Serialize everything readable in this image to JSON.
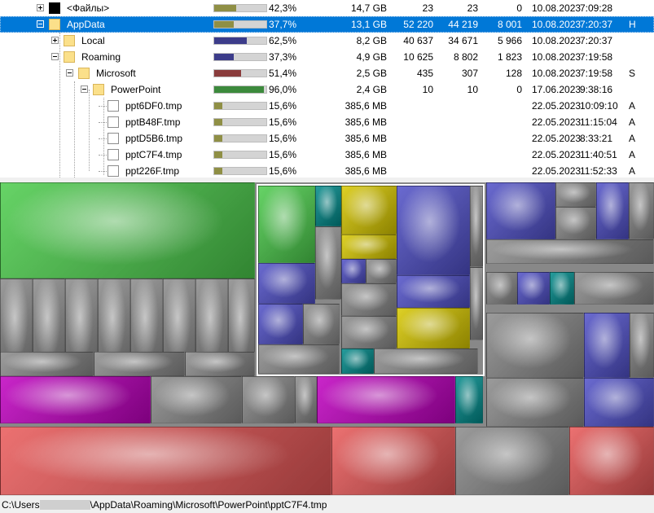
{
  "tree": {
    "rows": [
      {
        "name": "<Файлы>",
        "percent": "42,3%",
        "size": "14,7 GB",
        "items": "23",
        "files": "23",
        "subdirs": "0",
        "date": "10.08.2023",
        "time": "7:09:28",
        "attr": "",
        "bar_value": 0.423,
        "bar_color": "#8f8f45",
        "icon": "black-square-icon",
        "expander": "plus",
        "selected": false
      },
      {
        "name": "AppData",
        "percent": "37,7%",
        "size": "13,1 GB",
        "items": "52 220",
        "files": "44 219",
        "subdirs": "8 001",
        "date": "10.08.2023",
        "time": "7:20:37",
        "attr": "H",
        "bar_value": 0.377,
        "bar_color": "#8f8f45",
        "icon": "folder-icon",
        "expander": "minus",
        "selected": true
      },
      {
        "name": "Local",
        "percent": "62,5%",
        "size": "8,2 GB",
        "items": "40 637",
        "files": "34 671",
        "subdirs": "5 966",
        "date": "10.08.2023",
        "time": "7:20:37",
        "attr": "",
        "bar_value": 0.625,
        "bar_color": "#3c3c8a",
        "icon": "folder-icon",
        "expander": "plus",
        "selected": false
      },
      {
        "name": "Roaming",
        "percent": "37,3%",
        "size": "4,9 GB",
        "items": "10 625",
        "files": "8 802",
        "subdirs": "1 823",
        "date": "10.08.2023",
        "time": "7:19:58",
        "attr": "",
        "bar_value": 0.373,
        "bar_color": "#3c3c8a",
        "icon": "folder-icon",
        "expander": "minus",
        "selected": false
      },
      {
        "name": "Microsoft",
        "percent": "51,4%",
        "size": "2,5 GB",
        "items": "435",
        "files": "307",
        "subdirs": "128",
        "date": "10.08.2023",
        "time": "7:19:58",
        "attr": "S",
        "bar_value": 0.514,
        "bar_color": "#8a3c3c",
        "icon": "folder-icon",
        "expander": "minus",
        "selected": false
      },
      {
        "name": "PowerPoint",
        "percent": "96,0%",
        "size": "2,4 GB",
        "items": "10",
        "files": "10",
        "subdirs": "0",
        "date": "17.06.2023",
        "time": "9:38:16",
        "attr": "",
        "bar_value": 0.96,
        "bar_color": "#3c8a3c",
        "icon": "folder-icon",
        "expander": "minus",
        "selected": false
      },
      {
        "name": "ppt6DF0.tmp",
        "percent": "15,6%",
        "size": "385,6 MB",
        "items": "",
        "files": "",
        "subdirs": "",
        "date": "22.05.2023",
        "time": "10:09:10",
        "attr": "A",
        "bar_value": 0.156,
        "bar_color": "#8f8f45",
        "icon": "file-icon",
        "expander": "none",
        "selected": false
      },
      {
        "name": "pptB48F.tmp",
        "percent": "15,6%",
        "size": "385,6 MB",
        "items": "",
        "files": "",
        "subdirs": "",
        "date": "22.05.2023",
        "time": "11:15:04",
        "attr": "A",
        "bar_value": 0.156,
        "bar_color": "#8f8f45",
        "icon": "file-icon",
        "expander": "none",
        "selected": false
      },
      {
        "name": "pptD5B6.tmp",
        "percent": "15,6%",
        "size": "385,6 MB",
        "items": "",
        "files": "",
        "subdirs": "",
        "date": "22.05.2023",
        "time": "8:33:21",
        "attr": "A",
        "bar_value": 0.156,
        "bar_color": "#8f8f45",
        "icon": "file-icon",
        "expander": "none",
        "selected": false
      },
      {
        "name": "pptC7F4.tmp",
        "percent": "15,6%",
        "size": "385,6 MB",
        "items": "",
        "files": "",
        "subdirs": "",
        "date": "22.05.2023",
        "time": "11:40:51",
        "attr": "A",
        "bar_value": 0.156,
        "bar_color": "#8f8f45",
        "icon": "file-icon",
        "expander": "none",
        "selected": false
      },
      {
        "name": "ppt226F.tmp",
        "percent": "15,6%",
        "size": "385,6 MB",
        "items": "",
        "files": "",
        "subdirs": "",
        "date": "22.05.2023",
        "time": "11:52:33",
        "attr": "A",
        "bar_value": 0.156,
        "bar_color": "#8f8f45",
        "icon": "file-icon",
        "expander": "none",
        "selected": false
      }
    ]
  },
  "treemap_colors": {
    "green": "#4ccc4c",
    "gray": "#8a8a8a",
    "magenta": "#c000c0",
    "red": "#e85858",
    "blue": "#5050c8",
    "yellow": "#d8c800",
    "teal": "#008a8a",
    "white": "#ffffff"
  },
  "status": {
    "path_prefix": "C:\\Users",
    "path_suffix": "\\AppData\\Roaming\\Microsoft\\PowerPoint\\pptC7F4.tmp"
  }
}
